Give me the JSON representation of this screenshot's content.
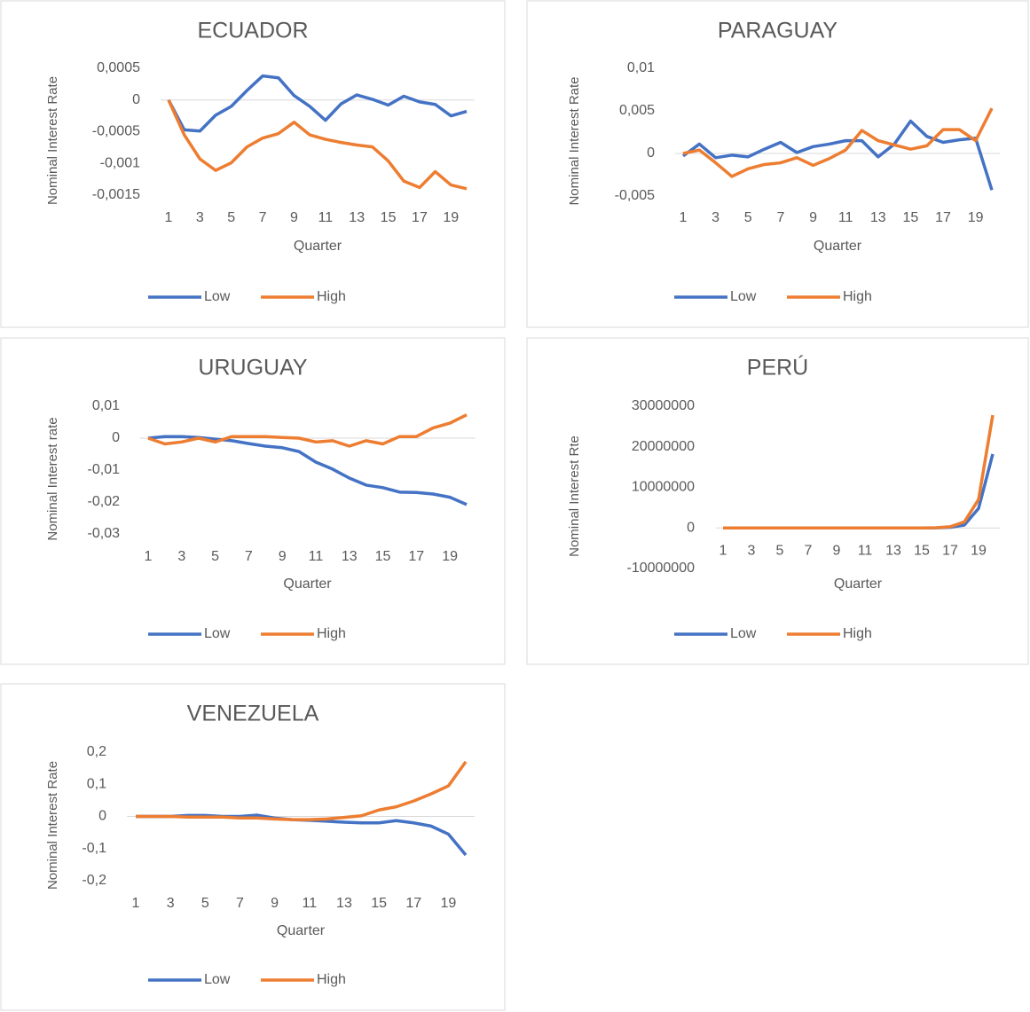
{
  "chart_data": [
    {
      "type": "line",
      "title": "ECUADOR",
      "x_label": "Quarter",
      "y_label": "Nominal Interest Rate",
      "legend": "bottom",
      "categories": [
        1,
        null,
        3,
        null,
        5,
        null,
        7,
        null,
        9,
        null,
        11,
        null,
        13,
        null,
        15,
        null,
        17,
        null,
        19,
        null
      ],
      "ylim": [
        -0.0015,
        0.0005
      ],
      "yticks": [
        {
          "value": 0.0005,
          "label": "0,0005"
        },
        0,
        {
          "value": -0.0005,
          "label": "-0,0005"
        },
        {
          "value": -0.001,
          "label": "-0,001"
        },
        {
          "value": -0.0015,
          "label": "-0,0015"
        }
      ],
      "series": [
        {
          "name": "Low",
          "color": "#4472c4",
          "values": [
            0,
            -0.00047,
            -0.00049,
            -0.00024,
            -0.0001,
            0.00015,
            0.00038,
            0.00035,
            7e-05,
            -0.0001,
            -0.00032,
            -6e-05,
            8e-05,
            1e-05,
            -8e-05,
            6e-05,
            -3e-05,
            -7e-05,
            -0.00025,
            -0.00018
          ]
        },
        {
          "name": "High",
          "color": "#ed7d31",
          "values": [
            0,
            -0.00055,
            -0.00093,
            -0.00111,
            -0.00099,
            -0.00074,
            -0.0006,
            -0.00053,
            -0.00035,
            -0.00055,
            -0.00062,
            -0.00067,
            -0.00071,
            -0.00074,
            -0.00096,
            -0.00128,
            -0.00138,
            -0.00113,
            -0.00134,
            -0.0014
          ]
        }
      ]
    },
    {
      "type": "line",
      "title": "PARAGUAY",
      "x_label": "Quarter",
      "y_label": "Nominal Interest Rate",
      "legend": "bottom",
      "categories": [
        1,
        null,
        3,
        null,
        5,
        null,
        7,
        null,
        9,
        null,
        11,
        null,
        13,
        null,
        15,
        null,
        17,
        null,
        19,
        null
      ],
      "ylim": [
        -0.005,
        0.01
      ],
      "yticks": [
        {
          "value": 0.01,
          "label": "0,01"
        },
        {
          "value": 0.005,
          "label": "0,005"
        },
        0,
        {
          "value": -0.005,
          "label": "-0,005"
        }
      ],
      "series": [
        {
          "name": "Low",
          "color": "#4472c4",
          "values": [
            -0.0003,
            0.0011,
            -0.0005,
            -0.0002,
            -0.0004,
            0.0005,
            0.0013,
            0.0001,
            0.0008,
            0.0011,
            0.0015,
            0.0015,
            -0.0004,
            0.0011,
            0.0038,
            0.002,
            0.0013,
            0.0016,
            0.0018,
            -0.0043
          ]
        },
        {
          "name": "High",
          "color": "#ed7d31",
          "values": [
            0,
            0.0004,
            -0.0011,
            -0.0027,
            -0.0018,
            -0.0013,
            -0.0011,
            -0.0005,
            -0.0014,
            -0.0006,
            0.0004,
            0.0027,
            0.0015,
            0.001,
            0.0005,
            0.0009,
            0.0028,
            0.0028,
            0.0015,
            0.0053
          ]
        }
      ]
    },
    {
      "type": "line",
      "title": "URUGUAY",
      "x_label": "Quarter",
      "y_label": "Nominal Interest rate",
      "legend": "bottom",
      "categories": [
        1,
        null,
        3,
        null,
        5,
        null,
        7,
        null,
        9,
        null,
        11,
        null,
        13,
        null,
        15,
        null,
        17,
        null,
        19,
        null
      ],
      "ylim": [
        -0.03,
        0.01
      ],
      "yticks": [
        {
          "value": 0.01,
          "label": "0,01"
        },
        0,
        {
          "value": -0.01,
          "label": "-0,01"
        },
        {
          "value": -0.02,
          "label": "-0,02"
        },
        {
          "value": -0.03,
          "label": "-0,03"
        }
      ],
      "series": [
        {
          "name": "Low",
          "color": "#4472c4",
          "values": [
            0,
            0.0005,
            0.0005,
            0.0002,
            -0.0003,
            -0.0008,
            -0.0017,
            -0.0025,
            -0.003,
            -0.0042,
            -0.0075,
            -0.0097,
            -0.0125,
            -0.0147,
            -0.0155,
            -0.0169,
            -0.017,
            -0.0175,
            -0.0185,
            -0.0208
          ]
        },
        {
          "name": "High",
          "color": "#ed7d31",
          "values": [
            0,
            -0.0018,
            -0.0012,
            0,
            -0.0012,
            0.0005,
            0.0005,
            0.0005,
            0.0002,
            0,
            -0.0012,
            -0.0008,
            -0.0025,
            -0.0008,
            -0.0018,
            0.0005,
            0.0005,
            0.0032,
            0.0047,
            0.0073
          ]
        }
      ]
    },
    {
      "type": "line",
      "title": "PERÚ",
      "x_label": "Quarter",
      "y_label": "Nominal Interest Rte",
      "legend": "bottom",
      "categories": [
        1,
        null,
        3,
        null,
        5,
        null,
        7,
        null,
        9,
        null,
        11,
        null,
        13,
        null,
        15,
        null,
        17,
        null,
        19,
        null
      ],
      "ylim": [
        -10000000,
        30000000
      ],
      "yticks": [
        30000000,
        20000000,
        10000000,
        0,
        -10000000
      ],
      "series": [
        {
          "name": "Low",
          "color": "#4472c4",
          "values": [
            0,
            0,
            0,
            0,
            0,
            0,
            0,
            0,
            0,
            0,
            0,
            0,
            0,
            0,
            0,
            20000,
            150000,
            700000,
            4800000,
            18200000
          ]
        },
        {
          "name": "High",
          "color": "#ed7d31",
          "values": [
            0,
            0,
            0,
            0,
            0,
            0,
            0,
            0,
            0,
            0,
            0,
            0,
            0,
            0,
            0,
            50000,
            300000,
            1500000,
            7000000,
            27800000
          ]
        }
      ]
    },
    {
      "type": "line",
      "title": "VENEZUELA",
      "x_label": "Quarter",
      "y_label": "Nominal Interest Rate",
      "legend": "bottom",
      "categories": [
        1,
        null,
        3,
        null,
        5,
        null,
        7,
        null,
        9,
        null,
        11,
        null,
        13,
        null,
        15,
        null,
        17,
        null,
        19,
        null
      ],
      "ylim": [
        -0.2,
        0.2
      ],
      "yticks": [
        {
          "value": 0.2,
          "label": "0,2"
        },
        {
          "value": 0.1,
          "label": "0,1"
        },
        0,
        {
          "value": -0.1,
          "label": "-0,1"
        },
        {
          "value": -0.2,
          "label": "-0,2"
        }
      ],
      "series": [
        {
          "name": "Low",
          "color": "#4472c4",
          "values": [
            0,
            0,
            0,
            0.003,
            0.003,
            0,
            0,
            0.004,
            -0.005,
            -0.01,
            -0.012,
            -0.015,
            -0.018,
            -0.02,
            -0.02,
            -0.013,
            -0.02,
            -0.03,
            -0.055,
            -0.12
          ]
        },
        {
          "name": "High",
          "color": "#ed7d31",
          "values": [
            0,
            0,
            0,
            -0.002,
            -0.002,
            -0.002,
            -0.005,
            -0.005,
            -0.008,
            -0.01,
            -0.01,
            -0.008,
            -0.003,
            0.002,
            0.02,
            0.03,
            0.048,
            0.07,
            0.095,
            0.17
          ]
        }
      ]
    }
  ]
}
